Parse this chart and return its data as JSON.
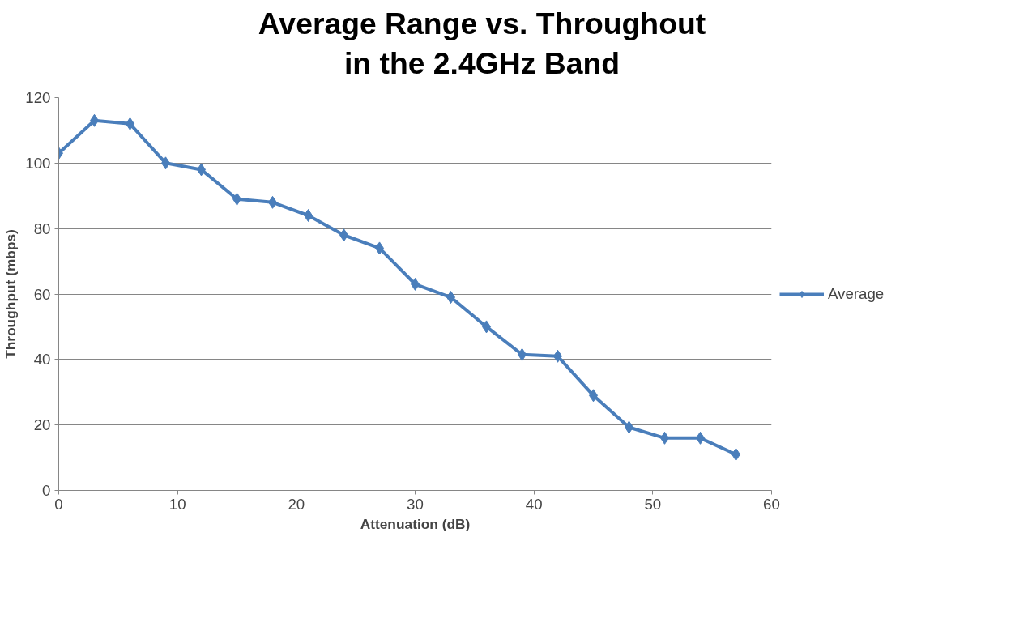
{
  "chart_data": {
    "type": "line",
    "title": "Average Range vs. Throughout\nin the 2.4GHz Band",
    "xlabel": "Attenuation (dB)",
    "ylabel": "Throughput (mbps)",
    "x": [
      0,
      3,
      6,
      9,
      12,
      15,
      18,
      21,
      24,
      27,
      30,
      33,
      36,
      39,
      42,
      45,
      48,
      51,
      54,
      57
    ],
    "series": [
      {
        "name": "Average",
        "color": "#4a7ebb",
        "values": [
          103,
          113,
          112,
          100,
          98,
          89,
          88,
          84,
          78,
          74,
          63,
          59,
          50,
          41.5,
          41,
          29,
          19.3,
          16,
          16,
          11
        ]
      }
    ],
    "xlim": [
      0,
      60
    ],
    "xticks": [
      0,
      10,
      20,
      30,
      40,
      50,
      60
    ],
    "ylim": [
      0,
      120
    ],
    "yticks": [
      0,
      20,
      40,
      60,
      80,
      100,
      120
    ],
    "grid": "y",
    "legend": "right",
    "marker": "diamond",
    "line_style": "solid"
  }
}
